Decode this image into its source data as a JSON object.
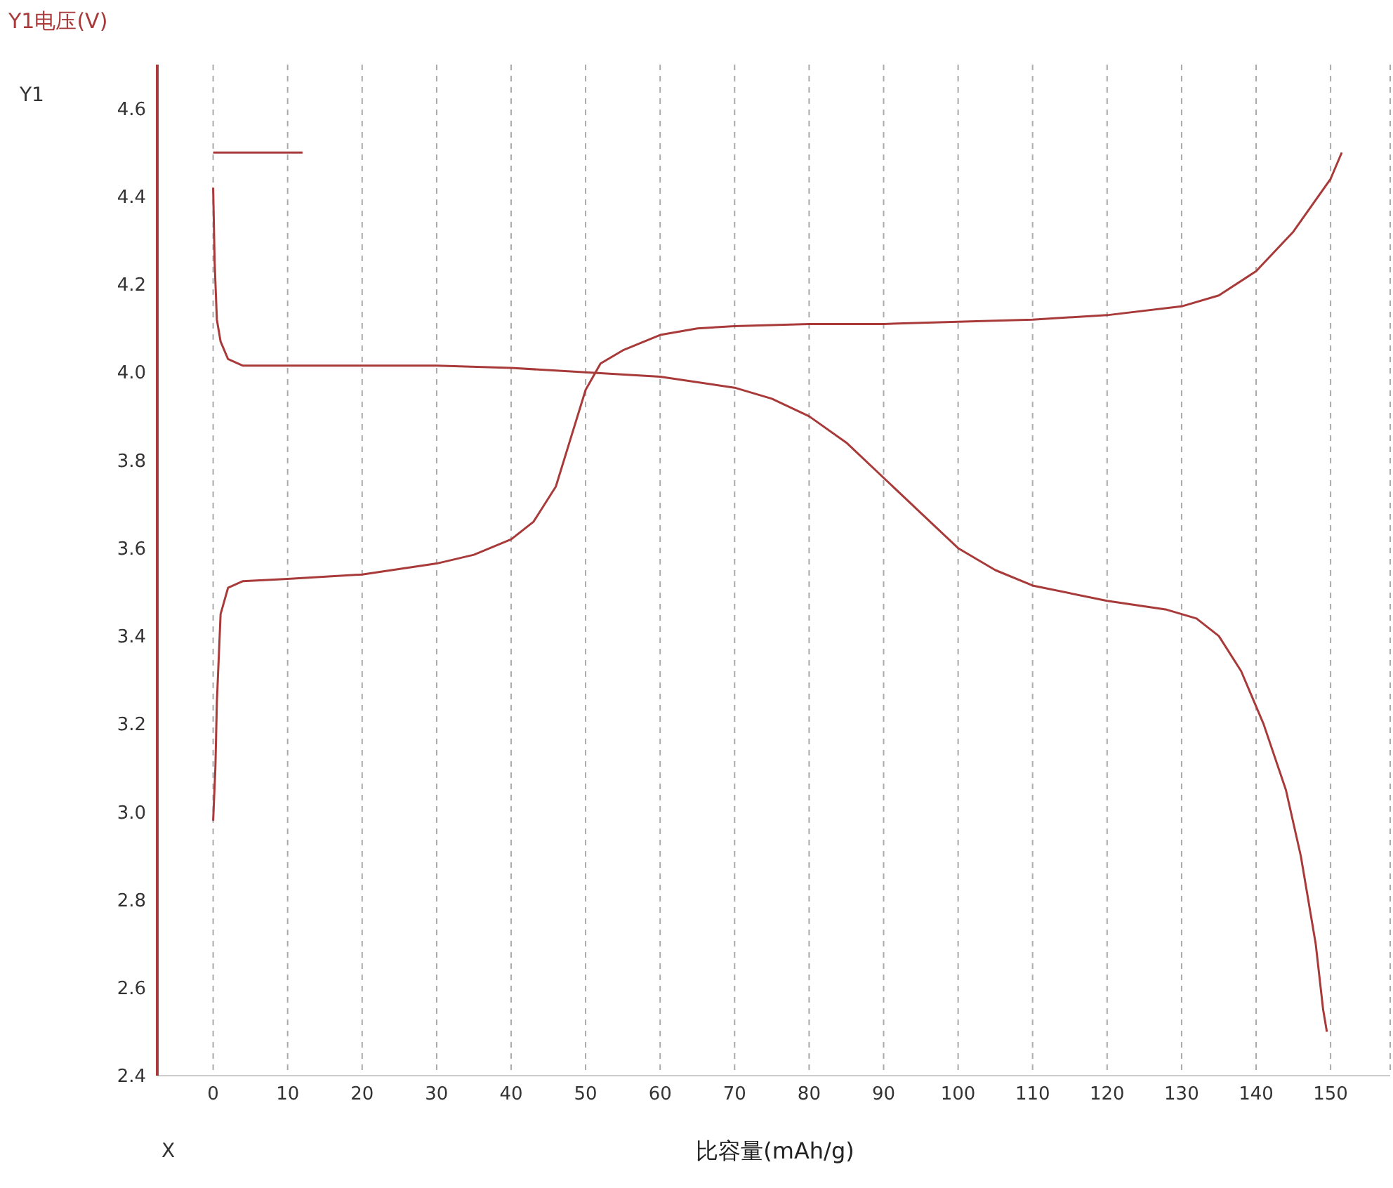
{
  "chart_data": {
    "type": "line",
    "ylabel": "Y1电压(V)",
    "xlabel": "比容量(mAh/g)",
    "annotations": [
      "Y1",
      "X"
    ],
    "xlim": [
      -7.5,
      158
    ],
    "xticks": [
      0,
      10,
      20,
      30,
      40,
      50,
      60,
      70,
      80,
      90,
      100,
      110,
      120,
      130,
      140,
      150
    ],
    "ylim": [
      2.4,
      4.7
    ],
    "yticks": [
      {
        "value": 2.4,
        "label": "2.4"
      },
      {
        "value": 2.6,
        "label": "2.6"
      },
      {
        "value": 2.8,
        "label": "2.8"
      },
      {
        "value": 3.0,
        "label": "3.0"
      },
      {
        "value": 3.2,
        "label": "3.2"
      },
      {
        "value": 3.4,
        "label": "3.4"
      },
      {
        "value": 3.6,
        "label": "3.6"
      },
      {
        "value": 3.8,
        "label": "3.8"
      },
      {
        "value": 4.0,
        "label": "4.0"
      },
      {
        "value": 4.2,
        "label": "4.2"
      },
      {
        "value": 4.4,
        "label": "4.4"
      },
      {
        "value": 4.6,
        "label": "4.6"
      }
    ],
    "grid": "x",
    "legend": false,
    "marker": "none",
    "line_style": "solid",
    "series": [
      {
        "color": "#a83a3a",
        "x": [
          0,
          0.3,
          0.5,
          1,
          2,
          4,
          10,
          20,
          30,
          35,
          40,
          43,
          46,
          48,
          50,
          52,
          55,
          60,
          65,
          70,
          80,
          90,
          100,
          110,
          120,
          130,
          135,
          140,
          145,
          150,
          151.5
        ],
        "values": [
          2.98,
          3.1,
          3.25,
          3.45,
          3.51,
          3.525,
          3.53,
          3.54,
          3.565,
          3.585,
          3.62,
          3.66,
          3.74,
          3.85,
          3.96,
          4.02,
          4.05,
          4.085,
          4.1,
          4.105,
          4.11,
          4.11,
          4.115,
          4.12,
          4.13,
          4.15,
          4.175,
          4.23,
          4.32,
          4.44,
          4.5
        ]
      },
      {
        "color": "#a83a3a",
        "x": [
          0,
          0.2,
          0.5,
          1,
          2,
          4,
          10,
          30,
          40,
          50,
          60,
          70,
          75,
          80,
          85,
          90,
          95,
          100,
          105,
          110,
          120,
          128,
          132,
          135,
          138,
          141,
          144,
          146,
          148,
          149,
          149.5
        ],
        "values": [
          4.42,
          4.25,
          4.12,
          4.07,
          4.03,
          4.015,
          4.015,
          4.015,
          4.01,
          4.0,
          3.99,
          3.965,
          3.94,
          3.9,
          3.84,
          3.76,
          3.68,
          3.6,
          3.55,
          3.515,
          3.48,
          3.46,
          3.44,
          3.4,
          3.32,
          3.2,
          3.05,
          2.9,
          2.7,
          2.55,
          2.5
        ]
      },
      {
        "color": "#a83a3a",
        "x": [
          0,
          12
        ],
        "values": [
          4.5,
          4.5
        ]
      }
    ]
  }
}
